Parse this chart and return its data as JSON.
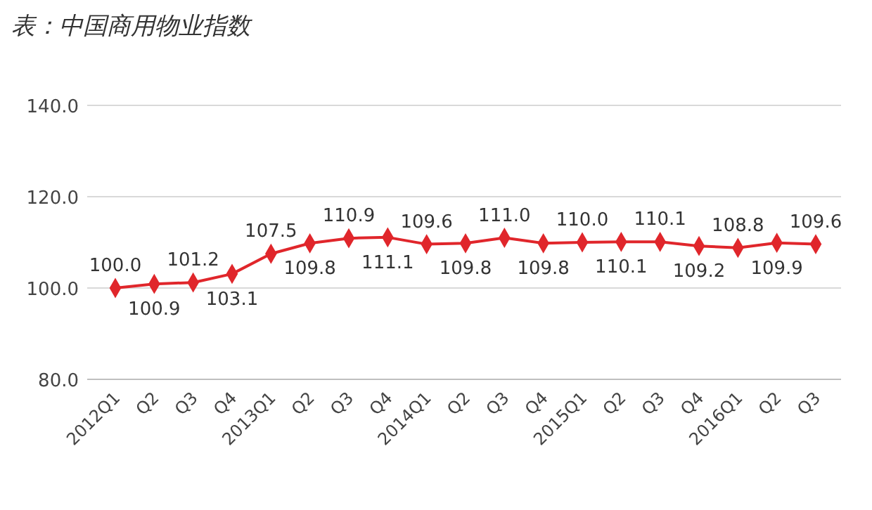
{
  "chart_data": {
    "type": "line",
    "title": "表：中国商用物业指数",
    "categories": [
      "2012Q1",
      "Q2",
      "Q3",
      "Q4",
      "2013Q1",
      "Q2",
      "Q3",
      "Q4",
      "2014Q1",
      "Q2",
      "Q3",
      "Q4",
      "2015Q1",
      "Q2",
      "Q3",
      "Q4",
      "2016Q1",
      "Q2",
      "Q3"
    ],
    "series": [
      {
        "color": "#e0262b",
        "values": [
          100.0,
          100.9,
          101.2,
          103.1,
          107.5,
          109.8,
          110.9,
          111.1,
          109.6,
          109.8,
          111.0,
          109.8,
          110.0,
          110.1,
          110.1,
          109.2,
          108.8,
          109.9,
          109.6
        ],
        "value_labels": [
          "100.0",
          "100.9",
          "101.2",
          "103.1",
          "107.5",
          "109.8",
          "110.9",
          "111.1",
          "109.6",
          "109.8",
          "111.0",
          "109.8",
          "110.0",
          "110.1",
          "110.1",
          "109.2",
          "108.8",
          "109.9",
          "109.6"
        ]
      }
    ],
    "ylim": [
      80,
      140
    ],
    "yticks": [
      {
        "value": 80,
        "label": "80.0"
      },
      {
        "value": 100,
        "label": "100.0"
      },
      {
        "value": 120,
        "label": "120.0"
      },
      {
        "value": 140,
        "label": "140.0"
      }
    ],
    "grid": "y",
    "marker": "diamond",
    "line_style": "solid"
  }
}
